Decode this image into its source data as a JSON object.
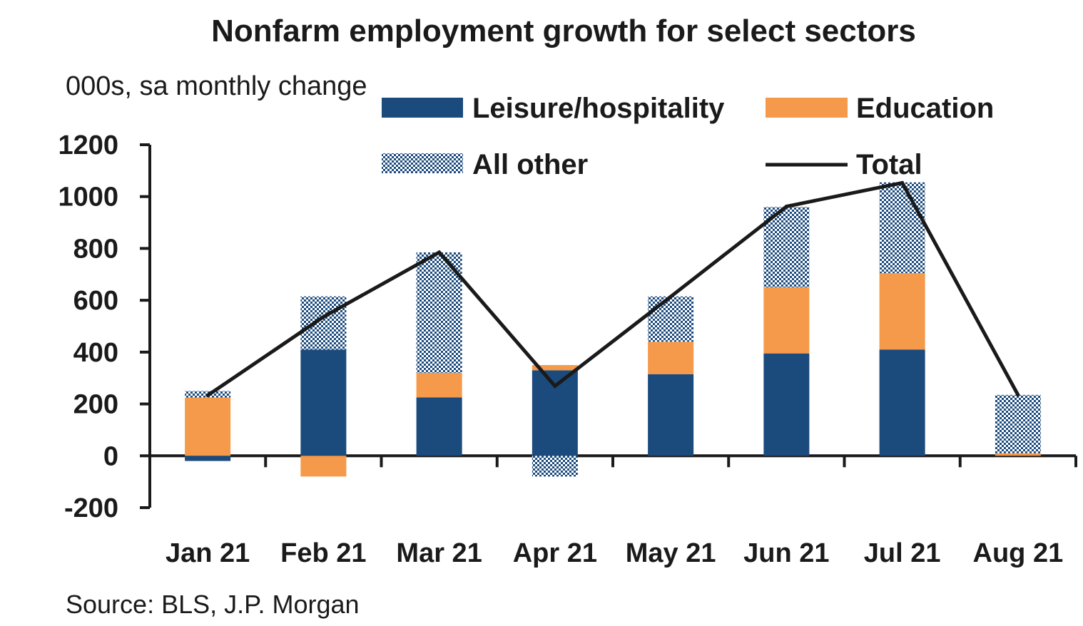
{
  "chart_data": {
    "type": "bar",
    "stacked": true,
    "title": "Nonfarm employment growth for select sectors",
    "subtitle": "000s, sa monthly change",
    "source": "Source: BLS, J.P. Morgan",
    "categories": [
      "Jan 21",
      "Feb 21",
      "Mar 21",
      "Apr 21",
      "May 21",
      "Jun 21",
      "Jul 21",
      "Aug 21"
    ],
    "ylim": [
      -200,
      1200
    ],
    "yticks": [
      1200,
      1000,
      800,
      600,
      400,
      200,
      0,
      -200
    ],
    "grid": false,
    "legend_position": "top-right",
    "series": [
      {
        "name": "Leisure/hospitality",
        "kind": "bar",
        "color": "#1b4a7d",
        "values": [
          -20,
          410,
          225,
          330,
          315,
          395,
          410,
          0
        ]
      },
      {
        "name": "Education",
        "kind": "bar",
        "color": "#f5994a",
        "values": [
          225,
          -80,
          95,
          20,
          125,
          255,
          295,
          10
        ]
      },
      {
        "name": "All other",
        "kind": "bar",
        "pattern": "checkered",
        "color": "#1b4a7d",
        "values": [
          25,
          205,
          465,
          -80,
          175,
          310,
          350,
          225
        ]
      },
      {
        "name": "Total",
        "kind": "line",
        "color": "#1a1a1a",
        "values": [
          233,
          536,
          785,
          269,
          614,
          962,
          1053,
          235
        ]
      }
    ]
  }
}
